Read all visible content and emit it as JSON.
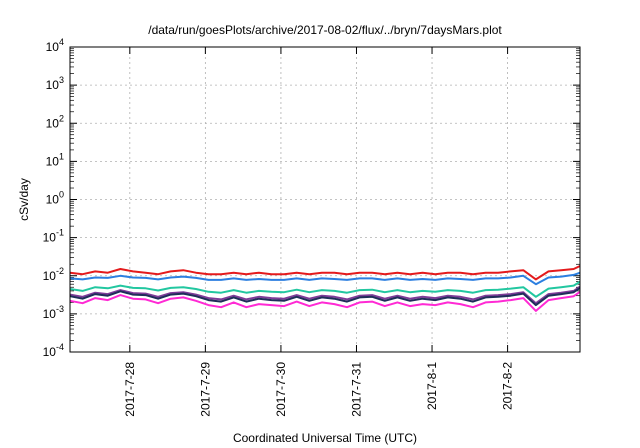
{
  "chart_data": {
    "type": "line",
    "title": "/data/run/goesPlots/archive/2017-08-02/flux/../bryn/7daysMars.plot",
    "xlabel": "Coordinated Universal Time (UTC)",
    "ylabel": "cSv/day",
    "yscale": "log",
    "ylim": [
      0.0001,
      10000
    ],
    "xlim": [
      "2017-07-27T05:00",
      "2017-08-02T23:00"
    ],
    "grid": true,
    "y_ticks": [
      {
        "value": 0.0001,
        "base": "10",
        "exp": "-4"
      },
      {
        "value": 0.001,
        "base": "10",
        "exp": "-3"
      },
      {
        "value": 0.01,
        "base": "10",
        "exp": "-2"
      },
      {
        "value": 0.1,
        "base": "10",
        "exp": "-1"
      },
      {
        "value": 1,
        "base": "10",
        "exp": "0"
      },
      {
        "value": 10,
        "base": "10",
        "exp": "1"
      },
      {
        "value": 100,
        "base": "10",
        "exp": "2"
      },
      {
        "value": 1000,
        "base": "10",
        "exp": "3"
      },
      {
        "value": 10000,
        "base": "10",
        "exp": "4"
      }
    ],
    "x_ticks": [
      {
        "date": "2017-07-28",
        "label": "2017-7-28"
      },
      {
        "date": "2017-07-29",
        "label": "2017-7-29"
      },
      {
        "date": "2017-07-30",
        "label": "2017-7-30"
      },
      {
        "date": "2017-07-31",
        "label": "2017-7-31"
      },
      {
        "date": "2017-08-01",
        "label": "2017-8-1"
      },
      {
        "date": "2017-08-02",
        "label": "2017-8-2"
      }
    ],
    "x": [
      "2017-07-27T05:00",
      "2017-07-27T09:00",
      "2017-07-27T13:00",
      "2017-07-27T17:00",
      "2017-07-27T21:00",
      "2017-07-28T01:00",
      "2017-07-28T05:00",
      "2017-07-28T09:00",
      "2017-07-28T13:00",
      "2017-07-28T17:00",
      "2017-07-28T21:00",
      "2017-07-29T01:00",
      "2017-07-29T05:00",
      "2017-07-29T09:00",
      "2017-07-29T13:00",
      "2017-07-29T17:00",
      "2017-07-29T21:00",
      "2017-07-30T01:00",
      "2017-07-30T05:00",
      "2017-07-30T09:00",
      "2017-07-30T13:00",
      "2017-07-30T17:00",
      "2017-07-30T21:00",
      "2017-07-31T01:00",
      "2017-07-31T05:00",
      "2017-07-31T09:00",
      "2017-07-31T13:00",
      "2017-07-31T17:00",
      "2017-07-31T21:00",
      "2017-08-01T01:00",
      "2017-08-01T05:00",
      "2017-08-01T09:00",
      "2017-08-01T13:00",
      "2017-08-01T17:00",
      "2017-08-01T21:00",
      "2017-08-02T01:00",
      "2017-08-02T05:00",
      "2017-08-02T09:00",
      "2017-08-02T13:00",
      "2017-08-02T17:00",
      "2017-08-02T21:00",
      "2017-08-02T23:00"
    ],
    "series": [
      {
        "color": "#e41a1c",
        "values": [
          0.012,
          0.011,
          0.013,
          0.012,
          0.015,
          0.013,
          0.012,
          0.011,
          0.013,
          0.014,
          0.012,
          0.011,
          0.011,
          0.012,
          0.011,
          0.012,
          0.011,
          0.011,
          0.012,
          0.011,
          0.012,
          0.012,
          0.011,
          0.012,
          0.012,
          0.011,
          0.012,
          0.011,
          0.012,
          0.011,
          0.012,
          0.012,
          0.011,
          0.012,
          0.012,
          0.013,
          0.014,
          0.008,
          0.013,
          0.014,
          0.015,
          0.018
        ]
      },
      {
        "color": "#2c7fe0",
        "values": [
          0.0085,
          0.008,
          0.009,
          0.0088,
          0.01,
          0.009,
          0.0088,
          0.008,
          0.009,
          0.0095,
          0.0088,
          0.0078,
          0.0078,
          0.0085,
          0.0078,
          0.0082,
          0.0078,
          0.0078,
          0.0085,
          0.0078,
          0.0085,
          0.0082,
          0.0078,
          0.0085,
          0.0085,
          0.0078,
          0.0085,
          0.0078,
          0.0082,
          0.0078,
          0.0085,
          0.0082,
          0.0078,
          0.0085,
          0.0085,
          0.009,
          0.01,
          0.006,
          0.009,
          0.0095,
          0.0105,
          0.012
        ]
      },
      {
        "color": "#22c7a0",
        "values": [
          0.0045,
          0.004,
          0.005,
          0.0047,
          0.0055,
          0.0048,
          0.0047,
          0.0041,
          0.0048,
          0.005,
          0.0045,
          0.0038,
          0.0036,
          0.0042,
          0.0036,
          0.004,
          0.0038,
          0.0037,
          0.0043,
          0.0037,
          0.0042,
          0.004,
          0.0036,
          0.0042,
          0.0043,
          0.0037,
          0.0042,
          0.0037,
          0.004,
          0.0038,
          0.0042,
          0.004,
          0.0036,
          0.0042,
          0.0043,
          0.0046,
          0.005,
          0.0028,
          0.0046,
          0.005,
          0.0055,
          0.007
        ]
      },
      {
        "color": "#7d3c98",
        "values": [
          0.0032,
          0.0028,
          0.0036,
          0.0033,
          0.0042,
          0.0035,
          0.0034,
          0.0028,
          0.0035,
          0.0037,
          0.0032,
          0.0026,
          0.0024,
          0.003,
          0.0024,
          0.0028,
          0.0026,
          0.0025,
          0.0031,
          0.0025,
          0.003,
          0.0028,
          0.0024,
          0.003,
          0.0031,
          0.0025,
          0.003,
          0.0025,
          0.0028,
          0.0026,
          0.003,
          0.0028,
          0.0024,
          0.003,
          0.0031,
          0.0033,
          0.0037,
          0.0019,
          0.0033,
          0.0036,
          0.004,
          0.0052
        ]
      },
      {
        "color": "#1f2d5a",
        "values": [
          0.0029,
          0.0025,
          0.0033,
          0.003,
          0.0039,
          0.0032,
          0.0031,
          0.0025,
          0.0032,
          0.0034,
          0.0029,
          0.0023,
          0.0021,
          0.0027,
          0.0021,
          0.0025,
          0.0023,
          0.0022,
          0.0028,
          0.0022,
          0.0027,
          0.0025,
          0.0021,
          0.0027,
          0.0028,
          0.0022,
          0.0027,
          0.0022,
          0.0025,
          0.0023,
          0.0027,
          0.0025,
          0.0021,
          0.0027,
          0.0028,
          0.003,
          0.0034,
          0.0017,
          0.003,
          0.0033,
          0.0037,
          0.0048
        ]
      },
      {
        "color": "#ff2ad4",
        "values": [
          0.0022,
          0.0019,
          0.0026,
          0.0023,
          0.0031,
          0.0025,
          0.0024,
          0.0019,
          0.0025,
          0.0027,
          0.0022,
          0.0017,
          0.0015,
          0.002,
          0.0015,
          0.0018,
          0.0017,
          0.0016,
          0.0021,
          0.0016,
          0.002,
          0.0018,
          0.0015,
          0.002,
          0.0021,
          0.0016,
          0.002,
          0.0016,
          0.0018,
          0.0017,
          0.002,
          0.0018,
          0.0015,
          0.002,
          0.0021,
          0.0023,
          0.0026,
          0.0012,
          0.0023,
          0.0026,
          0.0029,
          0.0038
        ]
      }
    ]
  }
}
